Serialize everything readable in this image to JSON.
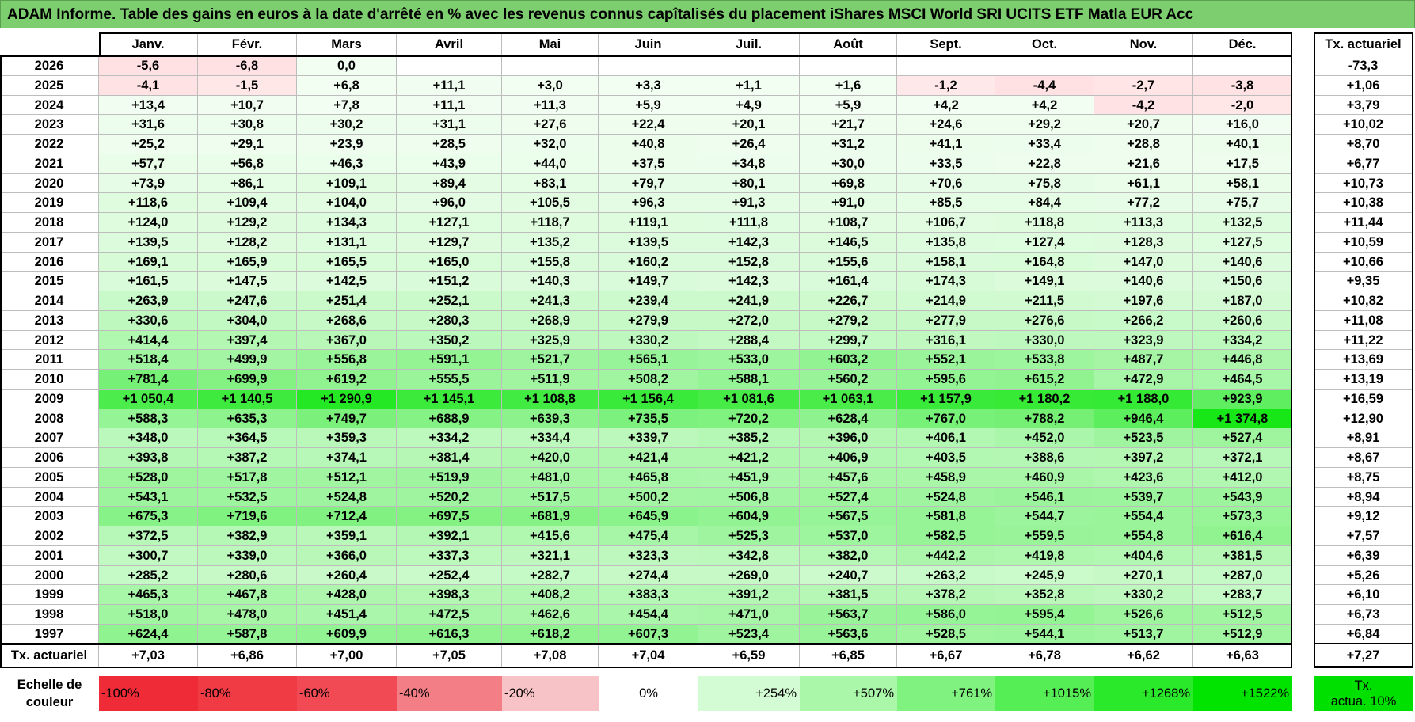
{
  "title": "ADAM Informe. Table des gains en euros à la date d'arrêté en % avec les revenus connus capîtalisés du placement iShares MSCI World SRI UCITS ETF Matla EUR Acc",
  "months": [
    "Janv.",
    "Févr.",
    "Mars",
    "Avril",
    "Mai",
    "Juin",
    "Juil.",
    "Août",
    "Sept.",
    "Oct.",
    "Nov.",
    "Déc."
  ],
  "tx_header": "Tx. actuariel",
  "rows": [
    {
      "year": "2026",
      "values": [
        "-5,6",
        "-6,8",
        "0,0",
        "",
        "",
        "",
        "",
        "",
        "",
        "",
        "",
        ""
      ],
      "tx": "-73,3"
    },
    {
      "year": "2025",
      "values": [
        "-4,1",
        "-1,5",
        "+6,8",
        "+11,1",
        "+3,0",
        "+3,3",
        "+1,1",
        "+1,6",
        "-1,2",
        "-4,4",
        "-2,7",
        "-3,8"
      ],
      "tx": "+1,06"
    },
    {
      "year": "2024",
      "values": [
        "+13,4",
        "+10,7",
        "+7,8",
        "+11,1",
        "+11,3",
        "+5,9",
        "+4,9",
        "+5,9",
        "+4,2",
        "+4,2",
        "-4,2",
        "-2,0"
      ],
      "tx": "+3,79"
    },
    {
      "year": "2023",
      "values": [
        "+31,6",
        "+30,8",
        "+30,2",
        "+31,1",
        "+27,6",
        "+22,4",
        "+20,1",
        "+21,7",
        "+24,6",
        "+29,2",
        "+20,7",
        "+16,0"
      ],
      "tx": "+10,02"
    },
    {
      "year": "2022",
      "values": [
        "+25,2",
        "+29,1",
        "+23,9",
        "+28,5",
        "+32,0",
        "+40,8",
        "+26,4",
        "+31,2",
        "+41,1",
        "+33,4",
        "+28,8",
        "+40,1"
      ],
      "tx": "+8,70"
    },
    {
      "year": "2021",
      "values": [
        "+57,7",
        "+56,8",
        "+46,3",
        "+43,9",
        "+44,0",
        "+37,5",
        "+34,8",
        "+30,0",
        "+33,5",
        "+22,8",
        "+21,6",
        "+17,5"
      ],
      "tx": "+6,77"
    },
    {
      "year": "2020",
      "values": [
        "+73,9",
        "+86,1",
        "+109,1",
        "+89,4",
        "+83,1",
        "+79,7",
        "+80,1",
        "+69,8",
        "+70,6",
        "+75,8",
        "+61,1",
        "+58,1"
      ],
      "tx": "+10,73"
    },
    {
      "year": "2019",
      "values": [
        "+118,6",
        "+109,4",
        "+104,0",
        "+96,0",
        "+105,5",
        "+96,3",
        "+91,3",
        "+91,0",
        "+85,5",
        "+84,4",
        "+77,2",
        "+75,7"
      ],
      "tx": "+10,38"
    },
    {
      "year": "2018",
      "values": [
        "+124,0",
        "+129,2",
        "+134,3",
        "+127,1",
        "+118,7",
        "+119,1",
        "+111,8",
        "+108,7",
        "+106,7",
        "+118,8",
        "+113,3",
        "+132,5"
      ],
      "tx": "+11,44"
    },
    {
      "year": "2017",
      "values": [
        "+139,5",
        "+128,2",
        "+131,1",
        "+129,7",
        "+135,2",
        "+139,5",
        "+142,3",
        "+146,5",
        "+135,8",
        "+127,4",
        "+128,3",
        "+127,5"
      ],
      "tx": "+10,59"
    },
    {
      "year": "2016",
      "values": [
        "+169,1",
        "+165,9",
        "+165,5",
        "+165,0",
        "+155,8",
        "+160,2",
        "+152,8",
        "+155,6",
        "+158,1",
        "+164,8",
        "+147,0",
        "+140,6"
      ],
      "tx": "+10,66"
    },
    {
      "year": "2015",
      "values": [
        "+161,5",
        "+147,5",
        "+142,5",
        "+151,2",
        "+140,3",
        "+149,7",
        "+142,3",
        "+161,4",
        "+174,3",
        "+149,1",
        "+140,6",
        "+150,6"
      ],
      "tx": "+9,35"
    },
    {
      "year": "2014",
      "values": [
        "+263,9",
        "+247,6",
        "+251,4",
        "+252,1",
        "+241,3",
        "+239,4",
        "+241,9",
        "+226,7",
        "+214,9",
        "+211,5",
        "+197,6",
        "+187,0"
      ],
      "tx": "+10,82"
    },
    {
      "year": "2013",
      "values": [
        "+330,6",
        "+304,0",
        "+268,6",
        "+280,3",
        "+268,9",
        "+279,9",
        "+272,0",
        "+279,2",
        "+277,9",
        "+276,6",
        "+266,2",
        "+260,6"
      ],
      "tx": "+11,08"
    },
    {
      "year": "2012",
      "values": [
        "+414,4",
        "+397,4",
        "+367,0",
        "+350,2",
        "+325,9",
        "+330,2",
        "+288,4",
        "+299,7",
        "+316,1",
        "+330,0",
        "+323,9",
        "+334,2"
      ],
      "tx": "+11,22"
    },
    {
      "year": "2011",
      "values": [
        "+518,4",
        "+499,9",
        "+556,8",
        "+591,1",
        "+521,7",
        "+565,1",
        "+533,0",
        "+603,2",
        "+552,1",
        "+533,8",
        "+487,7",
        "+446,8"
      ],
      "tx": "+13,69"
    },
    {
      "year": "2010",
      "values": [
        "+781,4",
        "+699,9",
        "+619,2",
        "+555,5",
        "+511,9",
        "+508,2",
        "+588,1",
        "+560,2",
        "+595,6",
        "+615,2",
        "+472,9",
        "+464,5"
      ],
      "tx": "+13,19"
    },
    {
      "year": "2009",
      "values": [
        "+1 050,4",
        "+1 140,5",
        "+1 290,9",
        "+1 145,1",
        "+1 108,8",
        "+1 156,4",
        "+1 081,6",
        "+1 063,1",
        "+1 157,9",
        "+1 180,2",
        "+1 188,0",
        "+923,9"
      ],
      "tx": "+16,59"
    },
    {
      "year": "2008",
      "values": [
        "+588,3",
        "+635,3",
        "+749,7",
        "+688,9",
        "+639,3",
        "+735,5",
        "+720,2",
        "+628,4",
        "+767,0",
        "+788,2",
        "+946,4",
        "+1 374,8"
      ],
      "tx": "+12,90"
    },
    {
      "year": "2007",
      "values": [
        "+348,0",
        "+364,5",
        "+359,3",
        "+334,2",
        "+334,4",
        "+339,7",
        "+385,2",
        "+396,0",
        "+406,1",
        "+452,0",
        "+523,5",
        "+527,4"
      ],
      "tx": "+8,91"
    },
    {
      "year": "2006",
      "values": [
        "+393,8",
        "+387,2",
        "+374,1",
        "+381,4",
        "+420,0",
        "+421,4",
        "+421,2",
        "+406,9",
        "+403,5",
        "+388,6",
        "+397,2",
        "+372,1"
      ],
      "tx": "+8,67"
    },
    {
      "year": "2005",
      "values": [
        "+528,0",
        "+517,8",
        "+512,1",
        "+519,9",
        "+481,0",
        "+465,8",
        "+451,9",
        "+457,6",
        "+458,9",
        "+460,9",
        "+423,6",
        "+412,0"
      ],
      "tx": "+8,75"
    },
    {
      "year": "2004",
      "values": [
        "+543,1",
        "+532,5",
        "+524,8",
        "+520,2",
        "+517,5",
        "+500,2",
        "+506,8",
        "+527,4",
        "+524,8",
        "+546,1",
        "+539,7",
        "+543,9"
      ],
      "tx": "+8,94"
    },
    {
      "year": "2003",
      "values": [
        "+675,3",
        "+719,6",
        "+712,4",
        "+697,5",
        "+681,9",
        "+645,9",
        "+604,9",
        "+567,5",
        "+581,8",
        "+544,7",
        "+554,4",
        "+573,3"
      ],
      "tx": "+9,12"
    },
    {
      "year": "2002",
      "values": [
        "+372,5",
        "+382,9",
        "+359,1",
        "+392,1",
        "+415,6",
        "+475,4",
        "+525,3",
        "+537,0",
        "+582,5",
        "+559,5",
        "+554,8",
        "+616,4"
      ],
      "tx": "+7,57"
    },
    {
      "year": "2001",
      "values": [
        "+300,7",
        "+339,0",
        "+366,0",
        "+337,3",
        "+321,1",
        "+323,3",
        "+342,8",
        "+382,0",
        "+442,2",
        "+419,8",
        "+404,6",
        "+381,5"
      ],
      "tx": "+6,39"
    },
    {
      "year": "2000",
      "values": [
        "+285,2",
        "+280,6",
        "+260,4",
        "+252,4",
        "+282,7",
        "+274,4",
        "+269,0",
        "+240,7",
        "+263,2",
        "+245,9",
        "+270,1",
        "+287,0"
      ],
      "tx": "+5,26"
    },
    {
      "year": "1999",
      "values": [
        "+465,3",
        "+467,8",
        "+428,0",
        "+398,3",
        "+408,2",
        "+383,3",
        "+391,2",
        "+381,5",
        "+378,2",
        "+352,8",
        "+330,2",
        "+283,7"
      ],
      "tx": "+6,10"
    },
    {
      "year": "1998",
      "values": [
        "+518,0",
        "+478,0",
        "+451,4",
        "+472,5",
        "+462,6",
        "+454,4",
        "+471,0",
        "+563,7",
        "+586,0",
        "+595,4",
        "+526,6",
        "+512,5"
      ],
      "tx": "+6,73"
    },
    {
      "year": "1997",
      "values": [
        "+624,4",
        "+587,8",
        "+609,9",
        "+616,3",
        "+618,2",
        "+607,3",
        "+523,4",
        "+563,6",
        "+528,5",
        "+544,1",
        "+513,7",
        "+512,9"
      ],
      "tx": "+6,84"
    }
  ],
  "footer": {
    "label": "Tx. actuariel",
    "values": [
      "+7,03",
      "+6,86",
      "+7,00",
      "+7,05",
      "+7,08",
      "+7,04",
      "+6,59",
      "+6,85",
      "+6,67",
      "+6,78",
      "+6,62",
      "+6,63"
    ],
    "tx": "+7,27"
  },
  "legend": {
    "label_line1": "Echelle de",
    "label_line2": "couleur",
    "steps": [
      {
        "label": "-100%",
        "color": "#ee2b36"
      },
      {
        "label": "-80%",
        "color": "#f03a44"
      },
      {
        "label": "-60%",
        "color": "#f24a54"
      },
      {
        "label": "-40%",
        "color": "#f47e85"
      },
      {
        "label": "-20%",
        "color": "#f8c3c6"
      },
      {
        "label": "0%",
        "color": "#ffffff"
      },
      {
        "label": "+254%",
        "color": "#d4fcd4"
      },
      {
        "label": "+507%",
        "color": "#aaf7aa"
      },
      {
        "label": "+761%",
        "color": "#7ff27f"
      },
      {
        "label": "+1015%",
        "color": "#55ee55"
      },
      {
        "label": "+1268%",
        "color": "#2ae92a"
      },
      {
        "label": "+1522%",
        "color": "#00e400"
      }
    ],
    "tx_line1": "Tx.",
    "tx_line2": "actua. 10%",
    "tx_color": "#00e000"
  }
}
